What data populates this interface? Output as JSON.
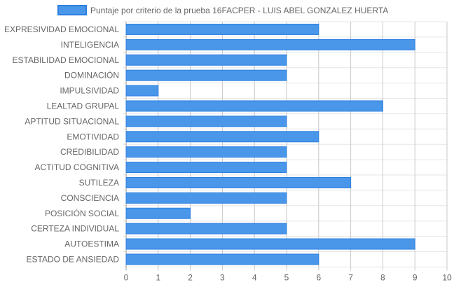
{
  "chart_data": {
    "type": "bar",
    "orientation": "horizontal",
    "series": [
      {
        "name": "Puntaje por criterio de la prueba 16FACPER - LUIS ABEL GONZALEZ HUERTA",
        "color": "#4a97ea",
        "border_color": "#2c7fe0",
        "values": [
          6,
          9,
          5,
          5,
          1,
          8,
          5,
          6,
          5,
          5,
          7,
          5,
          2,
          5,
          9,
          6
        ]
      }
    ],
    "categories": [
      "EXPRESIVIDAD EMOCIONAL",
      "INTELIGENCIA",
      "ESTABILIDAD EMOCIONAL",
      "DOMINACIÓN",
      "IMPULSIVIDAD",
      "LEALTAD GRUPAL",
      "APTITUD SITUACIONAL",
      "EMOTIVIDAD",
      "CREDIBILIDAD",
      "ACTITUD COGNITIVA",
      "SUTILEZA",
      "CONSCIENCIA",
      "POSICIÓN SOCIAL",
      "CERTEZA INDIVIDUAL",
      "AUTOESTIMA",
      "ESTADO DE ANSIEDAD"
    ],
    "x_ticks": [
      "0",
      "1",
      "2",
      "3",
      "4",
      "5",
      "6",
      "7",
      "8",
      "9",
      "10"
    ],
    "xlim": [
      0,
      10
    ],
    "grid": true,
    "legend_position": "top"
  }
}
